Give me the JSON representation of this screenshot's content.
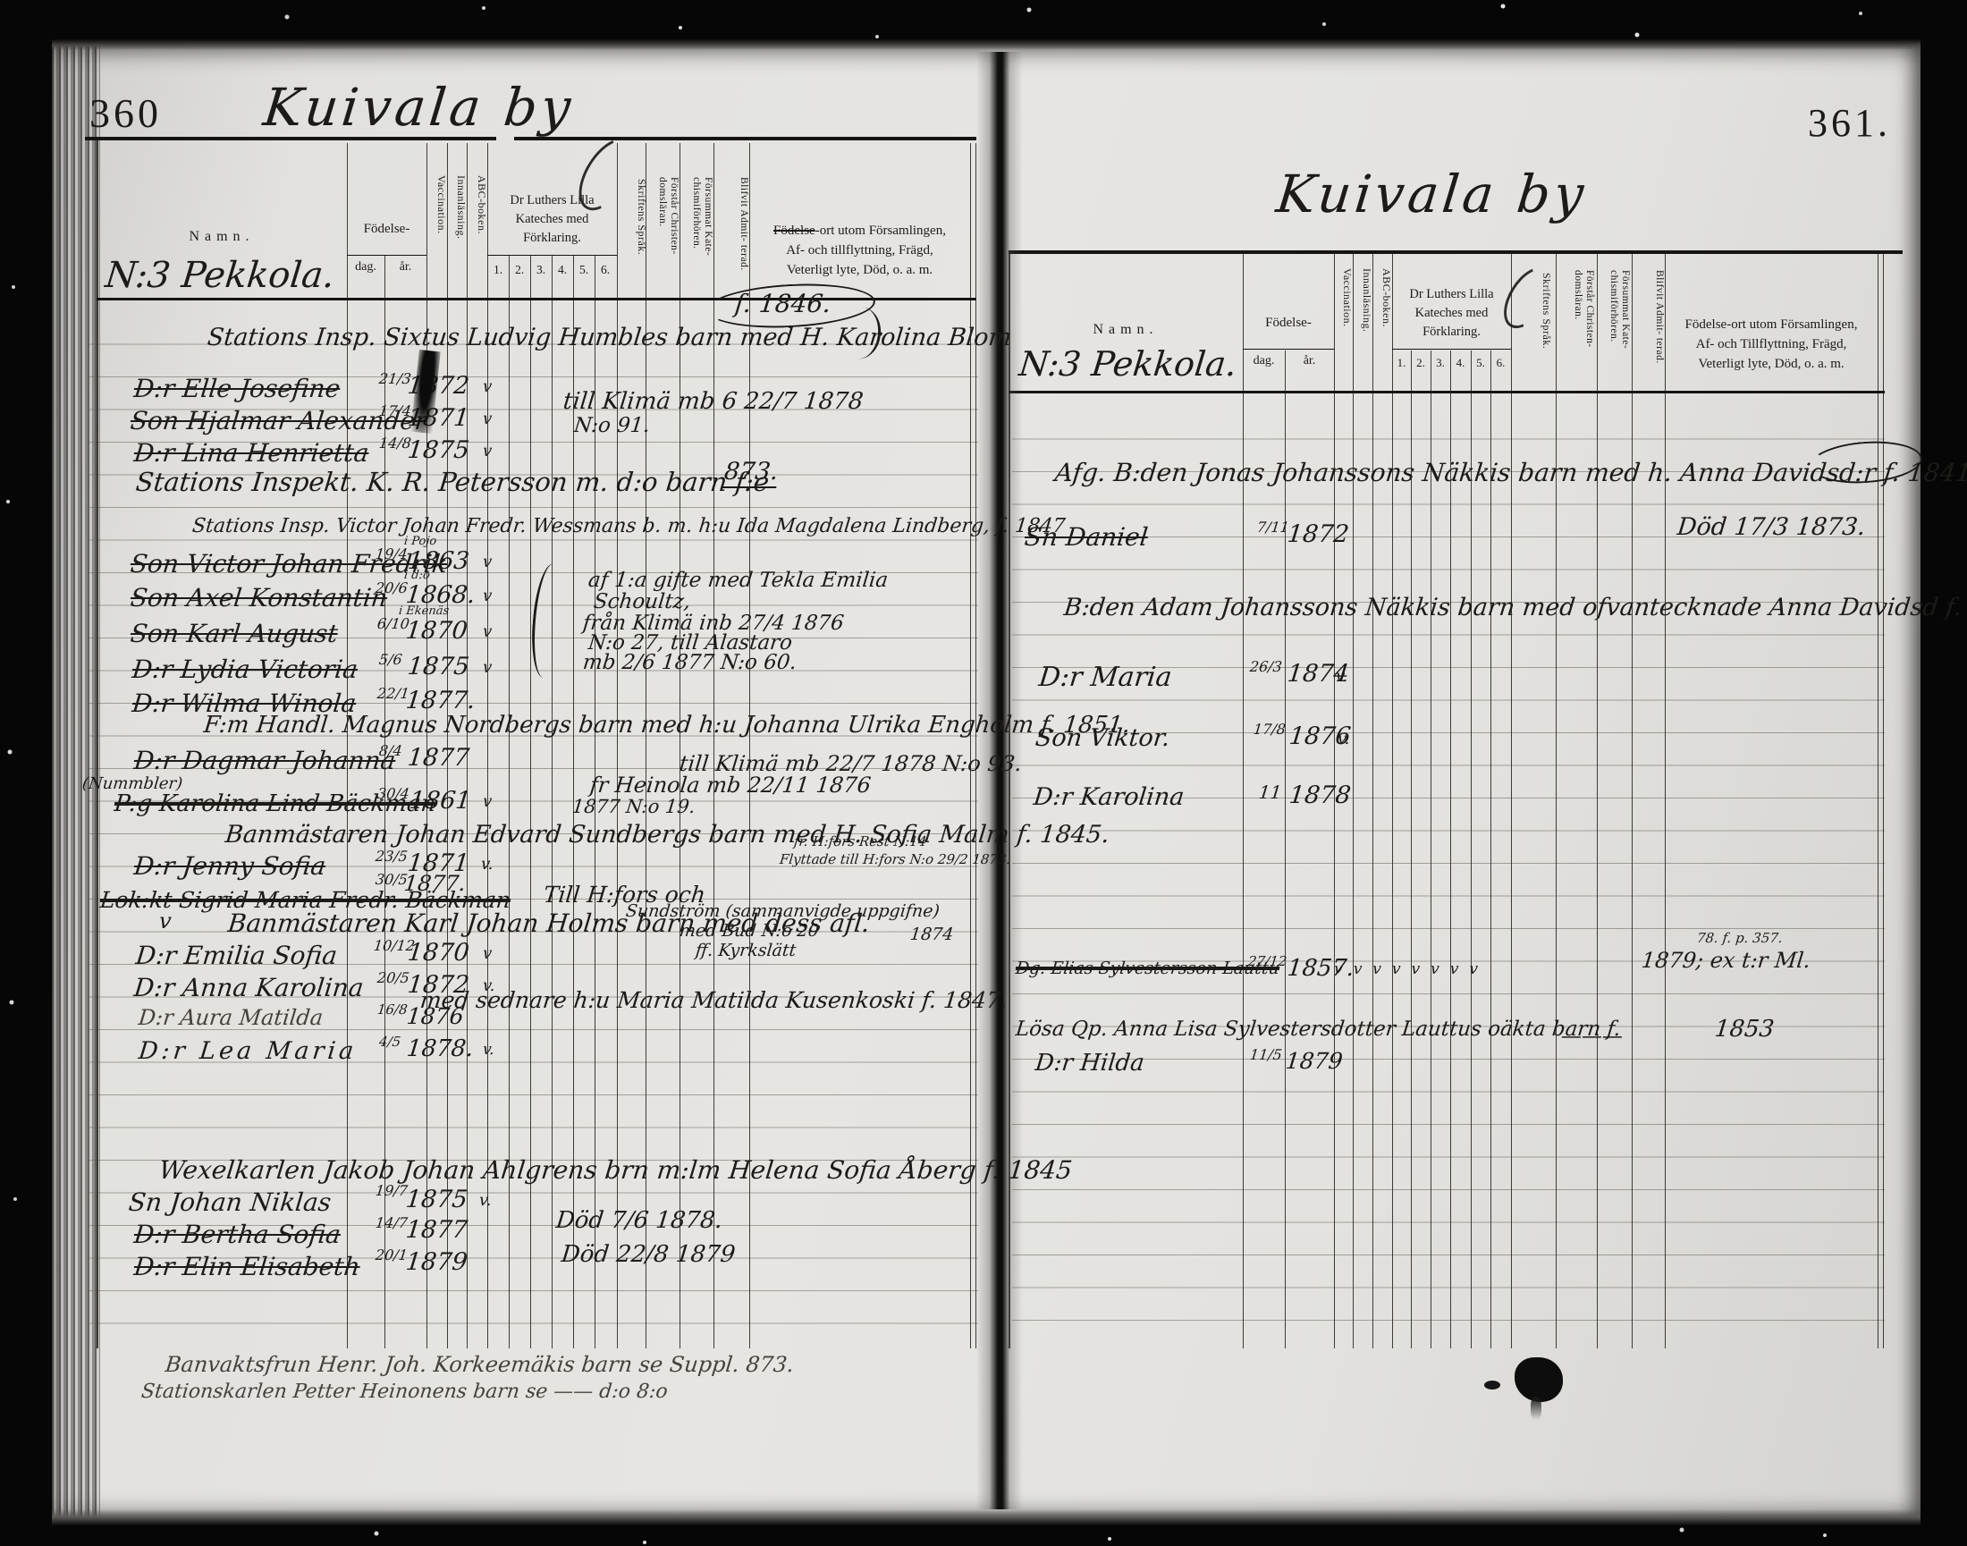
{
  "doc": {
    "left": {
      "page_number": "360",
      "title": "Kuivala by",
      "section": "N:3 Pekkola.",
      "header": {
        "namn": "Namn.",
        "fodelse": "Födelse-",
        "dag": "dag.",
        "ar": "år.",
        "vaccination": "Vaccination.",
        "innanlasning": "Innanläsning.",
        "abc": "ABC-boken.",
        "kateches1": "Dr Luthers Lilla",
        "kateches2": "Kateches med",
        "kateches3": "Förklaring.",
        "n1": "1.",
        "n2": "2.",
        "n3": "3.",
        "n4": "4.",
        "n5": "5.",
        "n6": "6.",
        "skriftens": "Skriftens Språk.",
        "forstar": "Förstår Christen- domsläran.",
        "forsummat": "Försummat Kate- chismiförhören.",
        "blifvit": "Blifvit Admit- terad.",
        "wide1_struck": "Födelse",
        "wide1_rest": "-ort utom Församlingen,",
        "wide2": "Af- och tillflyttning, Frägd,",
        "wide3": "Veterligt lyte, Död, o. a. m."
      },
      "entries": {
        "family1": "Stations Insp. Sixtus Ludvig Humbles barn med H. Karolina Blom",
        "family1_note": "f. 1846.",
        "elle": {
          "name": "D:r Elle Josefine",
          "day": "21/3",
          "year": "1872",
          "mark": "v"
        },
        "hjalmar": {
          "name": "Son Hjalmar Alexander",
          "day": "17/4",
          "year": "1871",
          "mark": "v"
        },
        "lina": {
          "name": "D:r Lina Henrietta",
          "day": "14/8",
          "year": "1875",
          "mark": "v"
        },
        "inspekt": "Stations Inspekt. K. R. Petersson m. d:o barn f:e",
        "inspekt_ref": "873.",
        "klima_note1": "till Klimä mb 6 22/7 1878",
        "klima_note2": "N:o 91.",
        "family2": "Stations Insp. Victor Johan Fredr. Wessmans b. m. h:u Ida Magdalena Lindberg, f. 1847",
        "victor": {
          "name": "Son Victor Johan Fredrik",
          "day": "19/4",
          "place": "i Pojo",
          "year": "1863",
          "mark": "v"
        },
        "axel": {
          "name": "Son Axel Konstantin",
          "day": "20/6",
          "place": "i d:o",
          "year": "1868.",
          "mark": "v"
        },
        "karl": {
          "name": "Son Karl August",
          "day": "6/10",
          "place": "i Ekenäs",
          "year": "1870",
          "mark": "v"
        },
        "lydia": {
          "name": "D:r Lydia Victoria",
          "day": "5/6",
          "year": "1875",
          "mark": "v"
        },
        "wilma": {
          "name": "D:r Wilma Winola",
          "day": "22/1",
          "year": "1877."
        },
        "gifte_note1": "af 1:a gifte med Tekla Emilia",
        "gifte_note2": "Schoultz,",
        "gifte_note3": "från Klimä inb 27/4 1876",
        "gifte_note4": "N:o 27, till Alastaro",
        "gifte_note5": "mb 2/6 1877 N:o 60.",
        "family3": "F:m Handl. Magnus Nordbergs barn med h:u Johanna Ulrika Engholm f. 1851.",
        "dagmar": {
          "name": "D:r Dagmar Johanna",
          "day": "8/4",
          "year": "1877"
        },
        "dagmar_note": "till Klimä mb 22/7 1878 N:o 93.",
        "margin_note": "(Nummbler)",
        "struckrow": {
          "name": "P:g Karolina Lind Bäckman",
          "day": "30/4",
          "year": "1861",
          "mark": "v"
        },
        "heinola_note1": "fr Heinola mb 22/11 1876",
        "heinola_note2": "1877 N:o 19.",
        "family4": "Banmästaren Johan Edvard Sundbergs barn med H. Sofia Malm f. 1845.",
        "family4_note1": "fr. H:fors Rest N:14",
        "family4_note2": "Flyttade till H:fors N:o 29/2 1873.",
        "jenny": {
          "name": "D:r Jenny Sofia",
          "day": "23/5",
          "year": "1871",
          "mark": "v."
        },
        "jenny_day2": "30/5",
        "jenny_year2": "1877.",
        "sigrid": "Lok:kt Sigrid Maria Fredr. Bäckman",
        "sigrid_note": "Till H:fors och",
        "family5_mark": "v",
        "family5": "Banmästaren Karl Johan Holms barn med dess afl.",
        "family5_note1": "Sundström (sammanvigde uppgifne)",
        "family5_note2": "med Bud N:o 20",
        "family5_note2b": "1874",
        "family5_note3": "ff. Kyrkslätt",
        "emilia": {
          "name": "D:r Emilia Sofia",
          "day": "10/12",
          "year": "1870",
          "mark": "v"
        },
        "anna": {
          "name": "D:r Anna Karolina",
          "day": "20/5",
          "year": "1872",
          "mark": "v."
        },
        "anna_note": "med sednare h:u Maria Matilda Kusenkoski f. 1847.",
        "aura": {
          "name": "D:r Aura Matilda",
          "day": "16/8",
          "year": "1876"
        },
        "lea": {
          "name": "D:r Lea Maria",
          "day": "4/5",
          "year": "1878.",
          "mark": "v."
        },
        "family6": "Wexelkarlen Jakob Johan Ahlgrens brn m:lm Helena Sofia Åberg f. 1845",
        "johan": {
          "name": "Sn Johan Niklas",
          "day": "19/7",
          "year": "1875",
          "mark": "v."
        },
        "bertha": {
          "name": "D:r Bertha Sofia",
          "day": "14/7",
          "year": "1877"
        },
        "bertha_note": "Död 7/6 1878.",
        "elin": {
          "name": "D:r Elin Elisabeth",
          "day": "20/1",
          "year": "1879"
        },
        "elin_note": "Död 22/8 1879",
        "bottom_note1": "Banvaktsfrun Henr. Joh. Korkeemäkis barn se Suppl. 873.",
        "bottom_note2": "Stationskarlen Petter Heinonens barn se —— d:o 8:o"
      }
    },
    "right": {
      "page_number": "361.",
      "title": "Kuivala by",
      "section": "N:3 Pekkola.",
      "header": {
        "namn": "Namn.",
        "fodelse": "Födelse-",
        "dag": "dag.",
        "ar": "år.",
        "vaccination": "Vaccination.",
        "innanlasning": "Innanläsning.",
        "abc": "ABC-boken.",
        "kateches1": "Dr Luthers Lilla",
        "kateches2": "Kateches med",
        "kateches3": "Förklaring.",
        "n1": "1.",
        "n2": "2.",
        "n3": "3.",
        "n4": "4.",
        "n5": "5.",
        "n6": "6.",
        "skriftens": "Skriftens Språk.",
        "forstar": "Förstår Christen- domsläran.",
        "forsummat": "Försummat Kate- chismiförhören.",
        "blifvit": "Blifvit Admit- terad.",
        "wide1": "Födelse-ort utom Församlingen,",
        "wide2": "Af- och Tillflyttning, Frägd,",
        "wide3": "Veterligt lyte, Död, o. a. m."
      },
      "entries": {
        "family1": "Afg. B:den Jonas Johanssons Näkkis barn med h. Anna Davidsd:r f. 1841.",
        "daniel": {
          "name": "Sn Daniel",
          "day": "7/11",
          "year": "1872"
        },
        "daniel_note": "Död 17/3 1873.",
        "family2": "B:den Adam Johanssons Näkkis barn med ofvantecknade Anna Davidsd f. 1841.",
        "maria": {
          "name": "D:r Maria",
          "day": "26/3",
          "year": "1874",
          "mark": "v."
        },
        "viktor": {
          "name": "Son Viktor.",
          "day": "17/8",
          "year": "1876",
          "mark": "v."
        },
        "karolina": {
          "name": "D:r Karolina",
          "day": "11",
          "year": "1878"
        },
        "elias": {
          "name": "Dg. Elias Sylvestersson Lauttu",
          "day": "27/12",
          "year": "1857."
        },
        "elias_marks": "vvvvvvvv",
        "elias_note1": "78. f. p. 357.",
        "elias_note2": "1879; ex t:r Ml.",
        "losa": "Lösa Qp. Anna Lisa Sylvestersdotter Lauttus oäkta barn f.",
        "losa_dash": "———",
        "losa_year": "1853",
        "hilda": {
          "name": "D:r Hilda",
          "day": "11/5",
          "year": "1879"
        }
      }
    }
  }
}
